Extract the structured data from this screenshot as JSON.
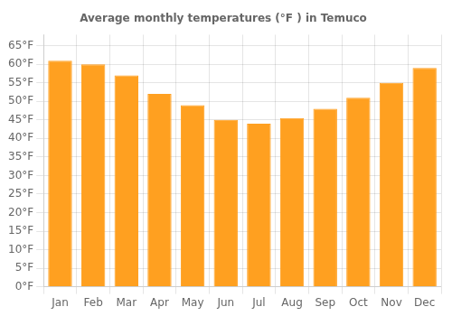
{
  "chart_data": {
    "type": "bar",
    "title": "Average monthly temperatures (°F ) in Temuco",
    "categories": [
      "Jan",
      "Feb",
      "Mar",
      "Apr",
      "May",
      "Jun",
      "Jul",
      "Aug",
      "Sep",
      "Oct",
      "Nov",
      "Dec"
    ],
    "values": [
      61,
      60,
      57,
      52,
      49,
      45,
      44,
      45.5,
      48,
      51,
      55,
      59
    ],
    "color": "#FFA020",
    "ylim": [
      0,
      68
    ],
    "yticks": [
      {
        "value": 0,
        "label": "0°F"
      },
      {
        "value": 5,
        "label": "5°F"
      },
      {
        "value": 10,
        "label": "10°F"
      },
      {
        "value": 15,
        "label": "15°F"
      },
      {
        "value": 20,
        "label": "20°F"
      },
      {
        "value": 25,
        "label": "25°F"
      },
      {
        "value": 30,
        "label": "30°F"
      },
      {
        "value": 35,
        "label": "35°F"
      },
      {
        "value": 40,
        "label": "40°F"
      },
      {
        "value": 45,
        "label": "45°F"
      },
      {
        "value": 50,
        "label": "50°F"
      },
      {
        "value": 55,
        "label": "55°F"
      },
      {
        "value": 60,
        "label": "60°F"
      },
      {
        "value": 65,
        "label": "65°F"
      }
    ],
    "grid": true
  }
}
